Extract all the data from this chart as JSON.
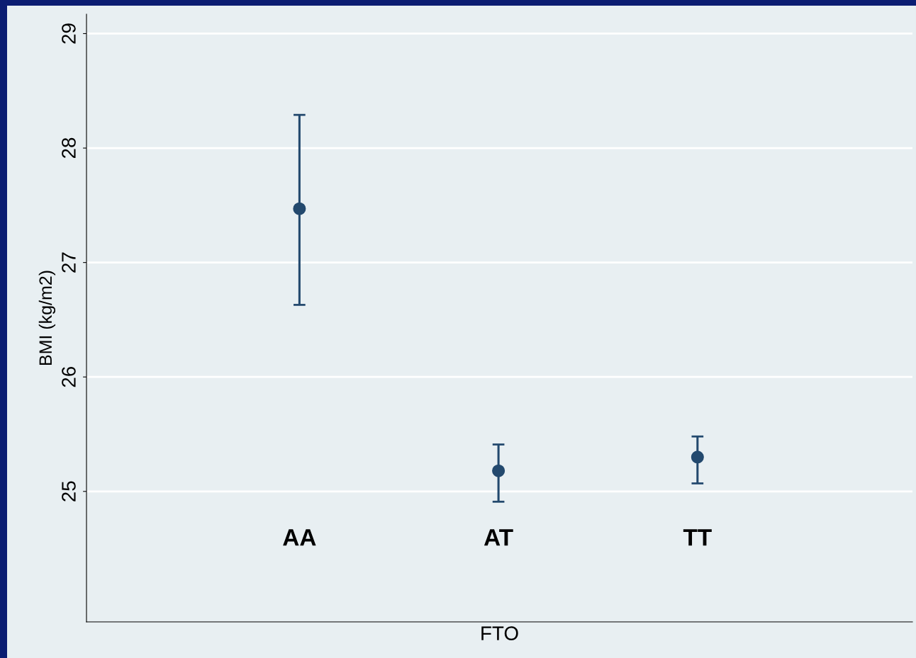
{
  "chart_data": {
    "type": "scatter",
    "xlabel": "FTO",
    "ylabel": "BMI (kg/m2)",
    "categories": [
      "AA",
      "AT",
      "TT"
    ],
    "values": [
      27.47,
      25.18,
      25.3
    ],
    "errors": [
      [
        26.63,
        28.29
      ],
      [
        24.91,
        25.41
      ],
      [
        25.07,
        25.48
      ]
    ],
    "color": "#23496e",
    "marker": "circle",
    "ylim": [
      23.86,
      29.17
    ],
    "yticks": [
      25,
      26,
      27,
      28,
      29
    ],
    "grid": "y"
  }
}
